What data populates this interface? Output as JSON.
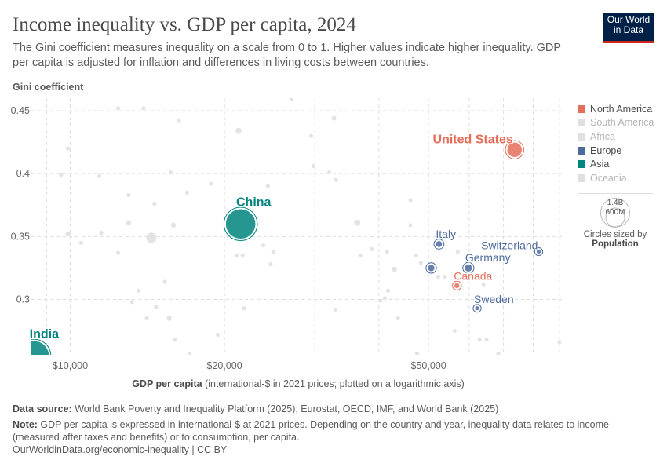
{
  "header": {
    "title": "Income inequality vs. GDP per capita, 2024",
    "subtitle": "The Gini coefficient measures inequality on a scale from 0 to 1. Higher values indicate higher inequality. GDP per capita is adjusted for inflation and differences in living costs between countries.",
    "logo": "Our World in Data"
  },
  "legend": {
    "items": [
      {
        "label": "North America",
        "color": "#e56e5a",
        "active": true
      },
      {
        "label": "South America",
        "color": "#e0e0e0",
        "active": false
      },
      {
        "label": "Africa",
        "color": "#e0e0e0",
        "active": false
      },
      {
        "label": "Europe",
        "color": "#4c6a9c",
        "active": true
      },
      {
        "label": "Asia",
        "color": "#00847e",
        "active": true
      },
      {
        "label": "Oceania",
        "color": "#e0e0e0",
        "active": false
      }
    ],
    "size_large": "1.4B",
    "size_small": "600M",
    "size_caption": "Circles sized by",
    "size_variable": "Population"
  },
  "chart_data": {
    "type": "scatter",
    "title": "Income inequality vs. GDP per capita, 2024",
    "ylabel": "Gini coefficient",
    "xlabel_bold": "GDP per capita",
    "xlabel_rest": " (international-$ in 2021 prices; plotted on a logarithmic axis)",
    "xscale": "log",
    "xlim": [
      8400,
      91000
    ],
    "ylim": [
      0.256,
      0.46
    ],
    "xticks": [
      {
        "v": 10000,
        "label": "$10,000"
      },
      {
        "v": 20000,
        "label": "$20,000"
      },
      {
        "v": 50000,
        "label": "$50,000"
      }
    ],
    "xgrid": [
      9000,
      10000,
      20000,
      30000,
      40000,
      50000,
      60000,
      70000,
      80000,
      90000
    ],
    "yticks": [
      {
        "v": 0.3,
        "label": "0.3"
      },
      {
        "v": 0.35,
        "label": "0.35"
      },
      {
        "v": 0.4,
        "label": "0.4"
      },
      {
        "v": 0.45,
        "label": "0.45"
      }
    ],
    "grid": true,
    "legend_placement": "right",
    "colors": {
      "North America": "#e56e5a",
      "Europe": "#4c6a9c",
      "Asia": "#00847e",
      "Other": "#e3e3e3"
    },
    "highlighted": [
      {
        "name": "United States",
        "region": "North America",
        "gdp": 73600,
        "gini": 0.419,
        "pop": 340
      },
      {
        "name": "China",
        "region": "Asia",
        "gdp": 21500,
        "gini": 0.36,
        "pop": 1410
      },
      {
        "name": "India",
        "region": "Asia",
        "gdp": 8500,
        "gini": 0.255,
        "pop": 1440
      },
      {
        "name": "Italy",
        "region": "Europe",
        "gdp": 52400,
        "gini": 0.344,
        "pop": 59
      },
      {
        "name": "Switzerland",
        "region": "Europe",
        "gdp": 82000,
        "gini": 0.338,
        "pop": 9
      },
      {
        "name": "Germany",
        "region": "Europe",
        "gdp": 59800,
        "gini": 0.325,
        "pop": 84
      },
      {
        "name": "",
        "region": "Europe",
        "gdp": 50600,
        "gini": 0.325,
        "pop": 68
      },
      {
        "name": "Canada",
        "region": "North America",
        "gdp": 56800,
        "gini": 0.311,
        "pop": 40
      },
      {
        "name": "Sweden",
        "region": "Europe",
        "gdp": 62200,
        "gini": 0.293,
        "pop": 10.5
      }
    ],
    "others": [
      [
        12400,
        0.452,
        8
      ],
      [
        13900,
        0.452,
        8
      ],
      [
        16300,
        0.442,
        8
      ],
      [
        21300,
        0.434,
        60
      ],
      [
        27000,
        0.459,
        8
      ],
      [
        9900,
        0.42,
        8
      ],
      [
        9600,
        0.399,
        8
      ],
      [
        11400,
        0.398,
        8
      ],
      [
        15700,
        0.401,
        12
      ],
      [
        18800,
        0.392,
        8
      ],
      [
        24300,
        0.39,
        8
      ],
      [
        13000,
        0.383,
        8
      ],
      [
        14600,
        0.376,
        8
      ],
      [
        16900,
        0.385,
        8
      ],
      [
        13000,
        0.361,
        40
      ],
      [
        15900,
        0.359,
        40
      ],
      [
        9900,
        0.352,
        40
      ],
      [
        11500,
        0.353,
        8
      ],
      [
        14400,
        0.349,
        170
      ],
      [
        10500,
        0.345,
        10
      ],
      [
        12400,
        0.337,
        8
      ],
      [
        21100,
        0.335,
        30
      ],
      [
        21700,
        0.335,
        8
      ],
      [
        23800,
        0.343,
        8
      ],
      [
        24900,
        0.338,
        8
      ],
      [
        24600,
        0.328,
        8
      ],
      [
        15300,
        0.314,
        8
      ],
      [
        13600,
        0.307,
        8
      ],
      [
        13200,
        0.298,
        20
      ],
      [
        14700,
        0.294,
        8
      ],
      [
        21800,
        0.293,
        8
      ],
      [
        14100,
        0.285,
        8
      ],
      [
        15600,
        0.285,
        45
      ],
      [
        16000,
        0.268,
        8
      ],
      [
        19400,
        0.272,
        8
      ],
      [
        17100,
        0.257,
        10
      ],
      [
        32700,
        0.444,
        35
      ],
      [
        29500,
        0.43,
        8
      ],
      [
        29800,
        0.406,
        12
      ],
      [
        32000,
        0.401,
        8
      ],
      [
        33000,
        0.395,
        8
      ],
      [
        46100,
        0.379,
        8
      ],
      [
        36300,
        0.361,
        60
      ],
      [
        46100,
        0.359,
        8
      ],
      [
        57000,
        0.338,
        10
      ],
      [
        38700,
        0.34,
        8
      ],
      [
        41500,
        0.338,
        8
      ],
      [
        36800,
        0.335,
        8
      ],
      [
        47300,
        0.335,
        15
      ],
      [
        48300,
        0.329,
        15
      ],
      [
        42900,
        0.324,
        45
      ],
      [
        52200,
        0.318,
        8
      ],
      [
        53800,
        0.318,
        25
      ],
      [
        64000,
        0.312,
        8
      ],
      [
        41700,
        0.307,
        8
      ],
      [
        41100,
        0.301,
        8
      ],
      [
        40300,
        0.299,
        8
      ],
      [
        32900,
        0.292,
        8
      ],
      [
        43600,
        0.285,
        12
      ],
      [
        56200,
        0.275,
        8
      ],
      [
        62900,
        0.268,
        8
      ],
      [
        64900,
        0.268,
        8
      ],
      [
        90000,
        0.266,
        8
      ],
      [
        47500,
        0.257,
        8
      ],
      [
        68400,
        0.257,
        8
      ]
    ]
  },
  "footer": {
    "source_label": "Data source:",
    "source": " World Bank Poverty and Inequality Platform (2025); Eurostat, OECD, IMF, and World Bank (2025)",
    "note_label": "Note:",
    "note": " GDP per capita is expressed in international-$ at 2021 prices. Depending on the country and year, inequality data relates to income (measured after taxes and benefits) or to consumption, per capita.",
    "credit": "OurWorldinData.org/economic-inequality | CC BY"
  }
}
